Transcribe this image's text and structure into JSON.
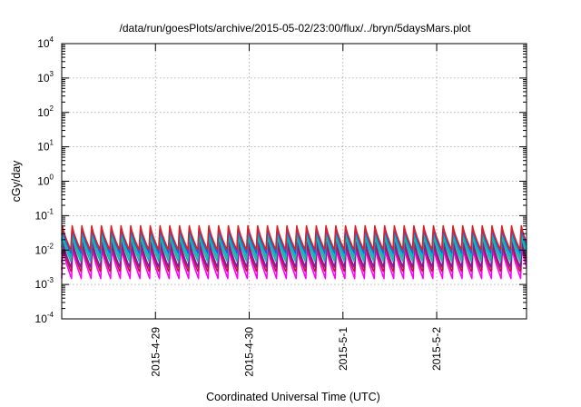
{
  "chart_data": {
    "type": "line",
    "title": "/data/run/goesPlots/archive/2015-05-02/23:00/flux/../bryn/5daysMars.plot",
    "xlabel": "Coordinated Universal Time (UTC)",
    "ylabel": "cGy/day",
    "yscale": "log",
    "ylim": [
      0.0001,
      10000
    ],
    "xlim": [
      "2015-04-28T00:00",
      "2015-05-02T23:00"
    ],
    "grid": true,
    "legend": "none",
    "x_ticks": [
      "2015-4-29",
      "2015-4-30",
      "2015-5-1",
      "2015-5-2"
    ],
    "y_ticks": [
      {
        "base": "10",
        "exp": "-4",
        "value": 0.0001
      },
      {
        "base": "10",
        "exp": "-3",
        "value": 0.001
      },
      {
        "base": "10",
        "exp": "-2",
        "value": 0.01
      },
      {
        "base": "10",
        "exp": "-1",
        "value": 0.1
      },
      {
        "base": "10",
        "exp": "0",
        "value": 1
      },
      {
        "base": "10",
        "exp": "1",
        "value": 10
      },
      {
        "base": "10",
        "exp": "2",
        "value": 100
      },
      {
        "base": "10",
        "exp": "3",
        "value": 1000
      },
      {
        "base": "10",
        "exp": "4",
        "value": 10000
      }
    ],
    "cycle_hours": 2.5,
    "series": [
      {
        "color": "#ff00ff",
        "peak": 0.012,
        "trough": 0.0015
      },
      {
        "color": "#c0143c",
        "peak": 0.016,
        "trough": 0.0022
      },
      {
        "color": "#7a1fa2",
        "peak": 0.02,
        "trough": 0.003
      },
      {
        "color": "#20b2aa",
        "peak": 0.028,
        "trough": 0.0045
      },
      {
        "color": "#00c0a0",
        "peak": 0.035,
        "trough": 0.006
      },
      {
        "color": "#1e5aff",
        "peak": 0.045,
        "trough": 0.008
      },
      {
        "color": "#e02020",
        "peak": 0.055,
        "trough": 0.01
      }
    ]
  }
}
